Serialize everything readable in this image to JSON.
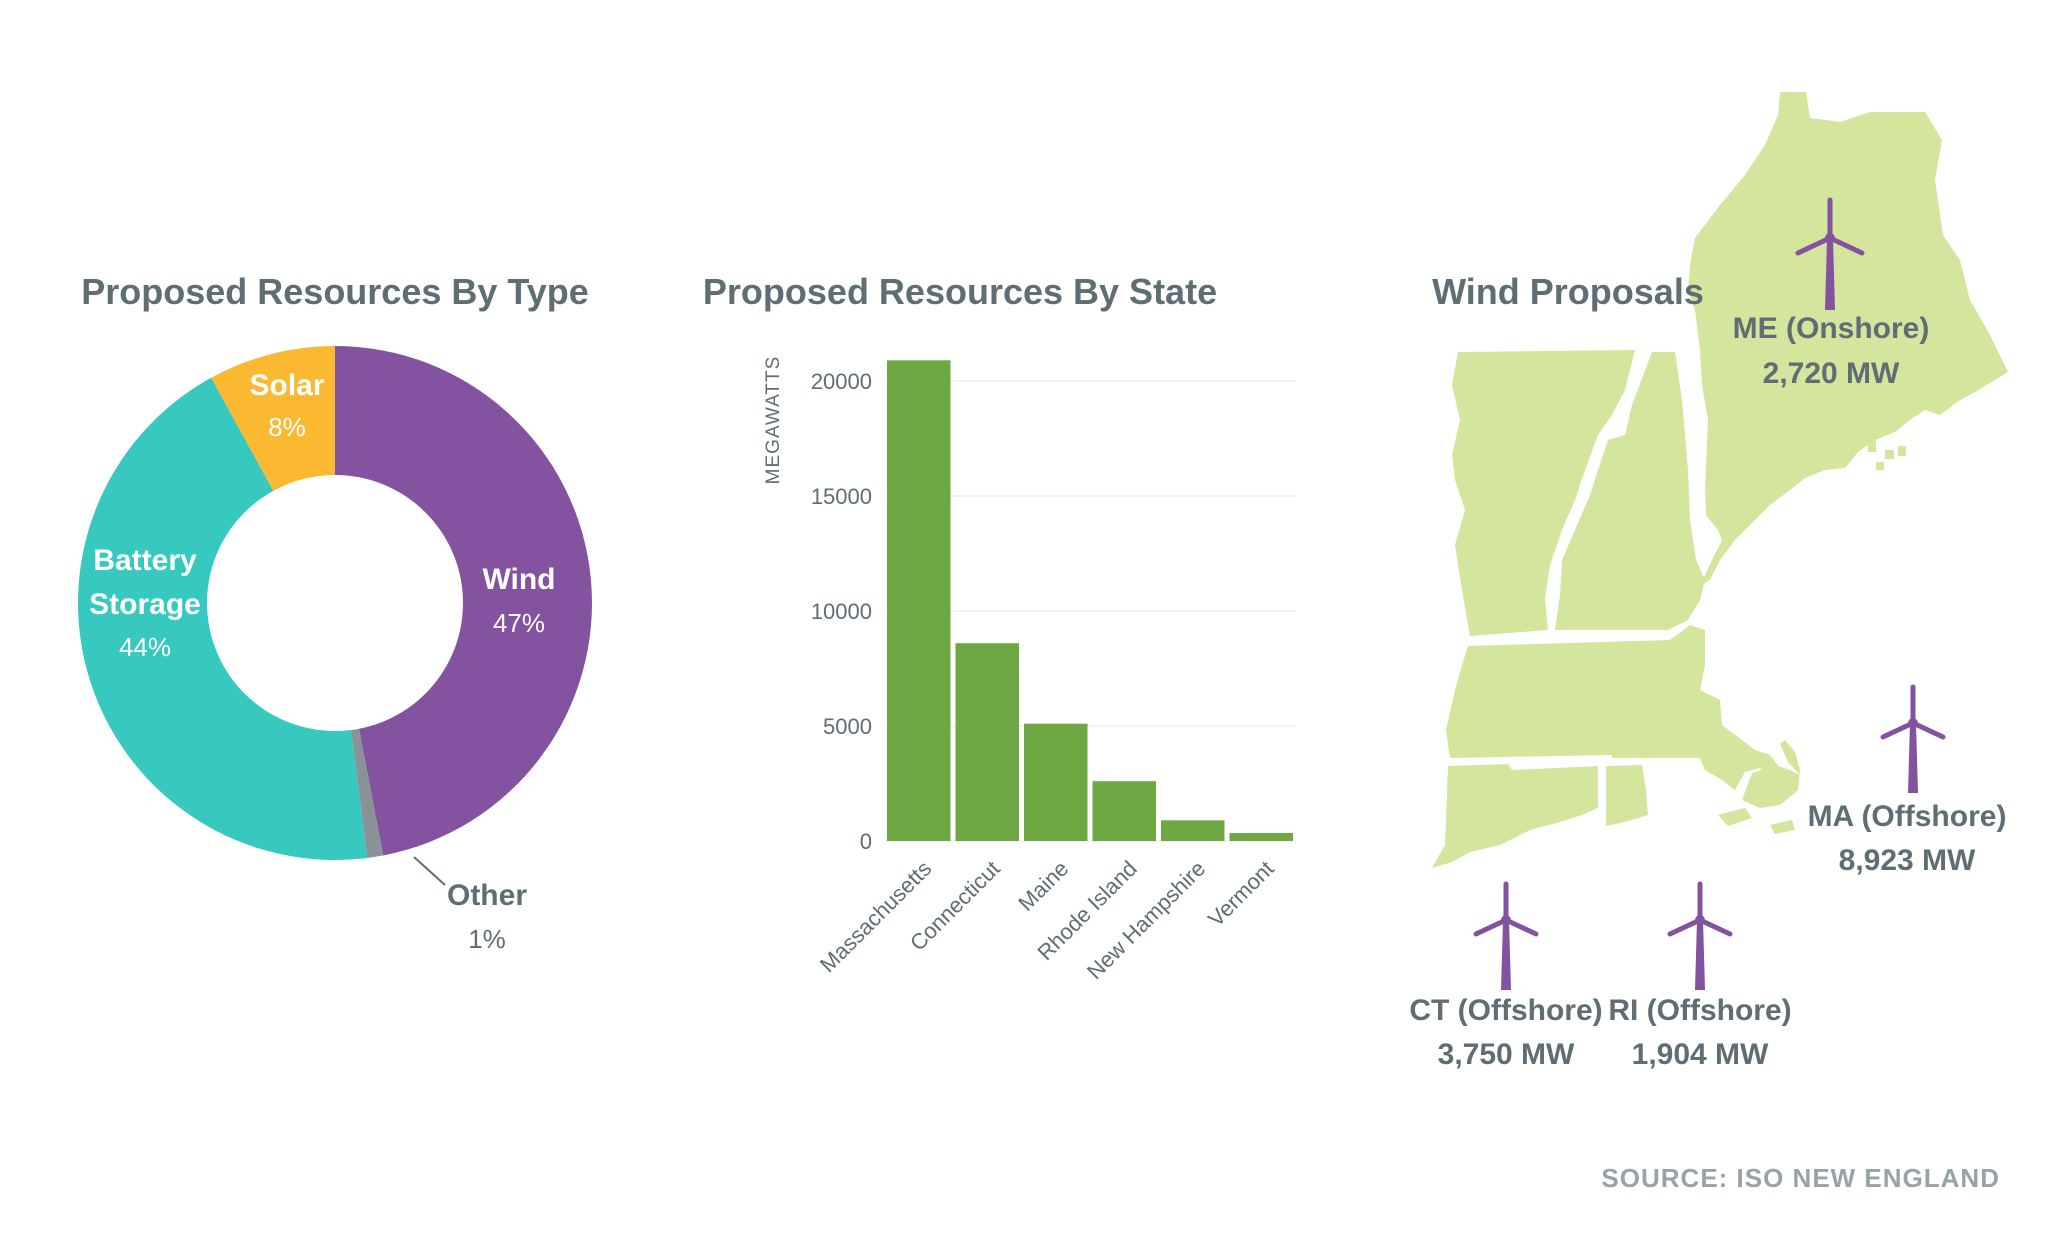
{
  "chart_data": [
    {
      "type": "pie",
      "variant": "donut",
      "title": "Proposed Resources By Type",
      "slices": [
        {
          "name": "Wind",
          "pct_label": "47%",
          "value": 47,
          "color": "#84539f"
        },
        {
          "name": "Other",
          "pct_label": "1%",
          "value": 1,
          "color": "#8a9298"
        },
        {
          "name": "Battery Storage",
          "name_lines": [
            "Battery",
            "Storage"
          ],
          "pct_label": "44%",
          "value": 44,
          "color": "#37c8c0"
        },
        {
          "name": "Solar",
          "pct_label": "8%",
          "value": 8,
          "color": "#fbb932"
        }
      ]
    },
    {
      "type": "bar",
      "title": "Proposed Resources By State",
      "ylabel": "MEGAWATTS",
      "xlabel": "",
      "categories": [
        "Massachusetts",
        "Connecticut",
        "Maine",
        "Rhode Island",
        "New Hampshire",
        "Vermont"
      ],
      "values": [
        20900,
        8600,
        5100,
        2600,
        900,
        350
      ],
      "ylim": [
        0,
        20000
      ],
      "yticks": [
        0,
        5000,
        10000,
        15000,
        20000
      ],
      "grid": true,
      "color": "#6ea842"
    },
    {
      "type": "map",
      "title": "Wind Proposals",
      "region": "New England",
      "map_color": "#d4e59e",
      "turbine_color": "#84539f",
      "proposals": [
        {
          "name": "ME (Onshore)",
          "value": "2,720 MW",
          "mw": 2720
        },
        {
          "name": "MA (Offshore)",
          "value": "8,923 MW",
          "mw": 8923
        },
        {
          "name": "CT (Offshore)",
          "value": "3,750 MW",
          "mw": 3750
        },
        {
          "name": "RI (Offshore)",
          "value": "1,904 MW",
          "mw": 1904
        }
      ]
    }
  ],
  "source": "SOURCE: ISO NEW ENGLAND"
}
